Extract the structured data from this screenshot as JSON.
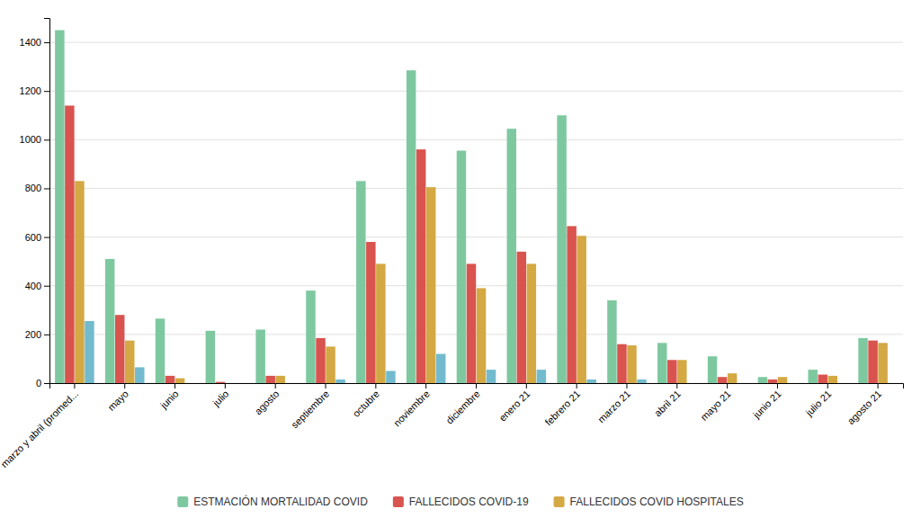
{
  "chart_data": {
    "type": "bar",
    "categories": [
      "marzo y abril (promed...",
      "mayo",
      "junio",
      "julio",
      "agosto",
      "septiembre",
      "octubre",
      "noviembre",
      "diciembre",
      "enero 21",
      "febrero 21",
      "marzo 21",
      "abril 21",
      "mayo 21",
      "junio 21",
      "julio 21",
      "agosto 21"
    ],
    "series": [
      {
        "name": "ESTMACIÓN MORTALIDAD COVID",
        "color": "#7EC8A0",
        "values": [
          1450,
          510,
          265,
          215,
          220,
          380,
          830,
          1285,
          955,
          1045,
          1100,
          340,
          165,
          110,
          25,
          55,
          185
        ]
      },
      {
        "name": "FALLECIDOS COVID-19",
        "color": "#D9534F",
        "values": [
          1140,
          280,
          30,
          5,
          30,
          185,
          580,
          960,
          490,
          540,
          645,
          160,
          95,
          25,
          15,
          35,
          175
        ]
      },
      {
        "name": "FALLECIDOS COVID HOSPITALES",
        "color": "#D4A843",
        "values": [
          830,
          175,
          20,
          0,
          30,
          150,
          490,
          805,
          390,
          490,
          605,
          155,
          95,
          40,
          25,
          30,
          165
        ]
      },
      {
        "color": "#72BBCE",
        "values": [
          255,
          65,
          0,
          0,
          0,
          15,
          50,
          120,
          55,
          55,
          15,
          15,
          0,
          0,
          0,
          0,
          0
        ]
      }
    ],
    "ylim": [
      0,
      1500
    ],
    "yticks": [
      0,
      200,
      400,
      600,
      800,
      1000,
      1200,
      1400
    ],
    "grid": true,
    "legend": "bottom"
  }
}
